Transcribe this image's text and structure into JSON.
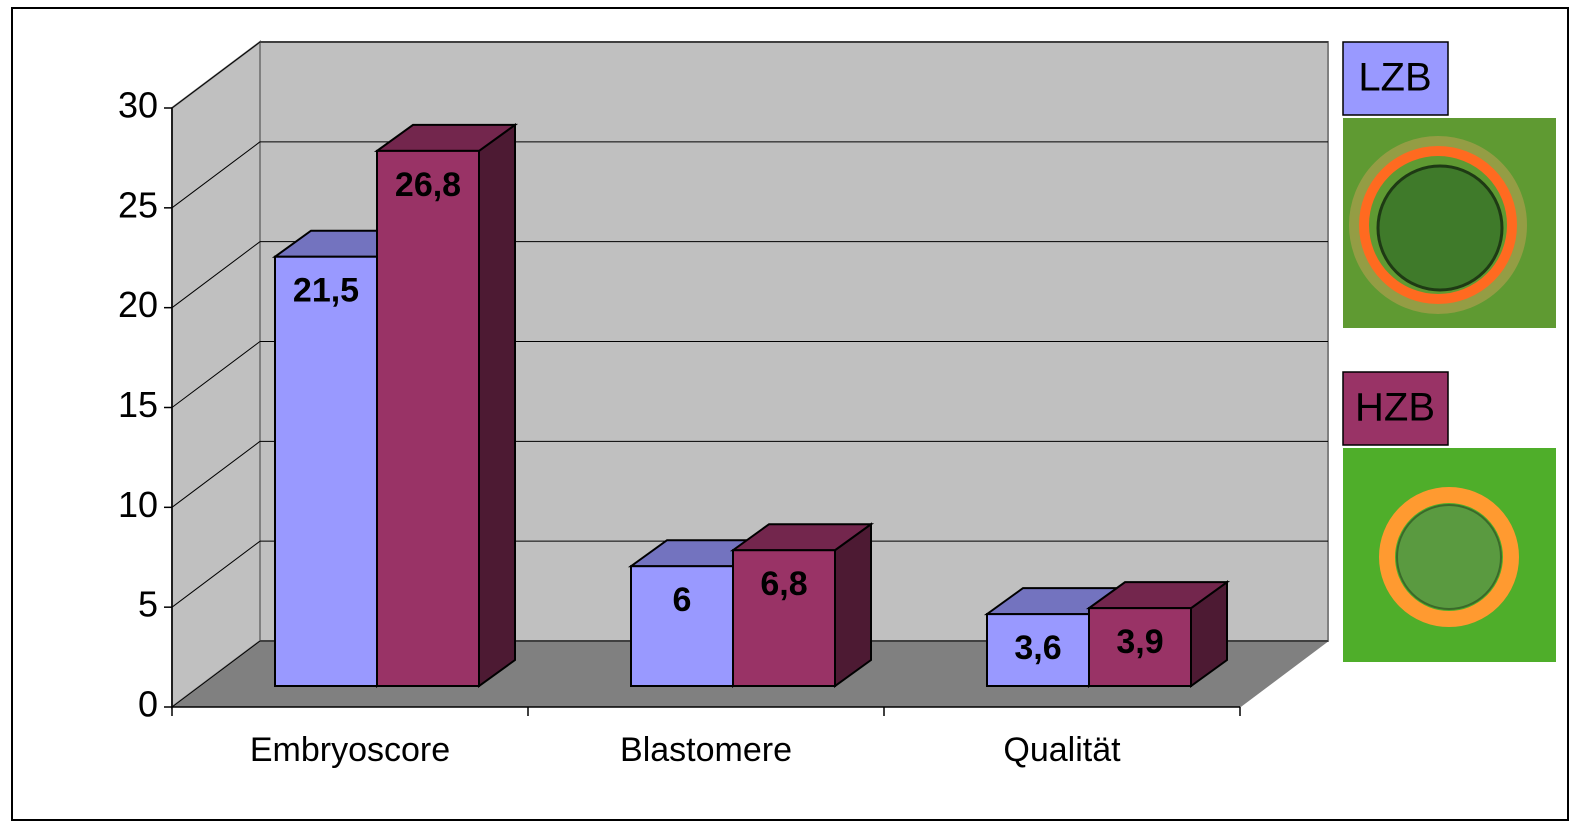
{
  "chart_data": {
    "type": "bar3d",
    "categories": [
      "Embryoscore",
      "Blastomere",
      "Qualität"
    ],
    "series": [
      {
        "name": "LZB",
        "color": "#9999ff",
        "values": [
          21.5,
          6,
          3.6
        ],
        "value_labels": [
          "21,5",
          "6",
          "3,6"
        ]
      },
      {
        "name": "HZB",
        "color": "#993366",
        "values": [
          26.8,
          6.8,
          3.9
        ],
        "value_labels": [
          "26,8",
          "6,8",
          "3,9"
        ]
      }
    ],
    "ylim": [
      0,
      30
    ],
    "yticks": [
      0,
      5,
      10,
      15,
      20,
      25,
      30
    ],
    "grid": true,
    "legend": "right"
  }
}
